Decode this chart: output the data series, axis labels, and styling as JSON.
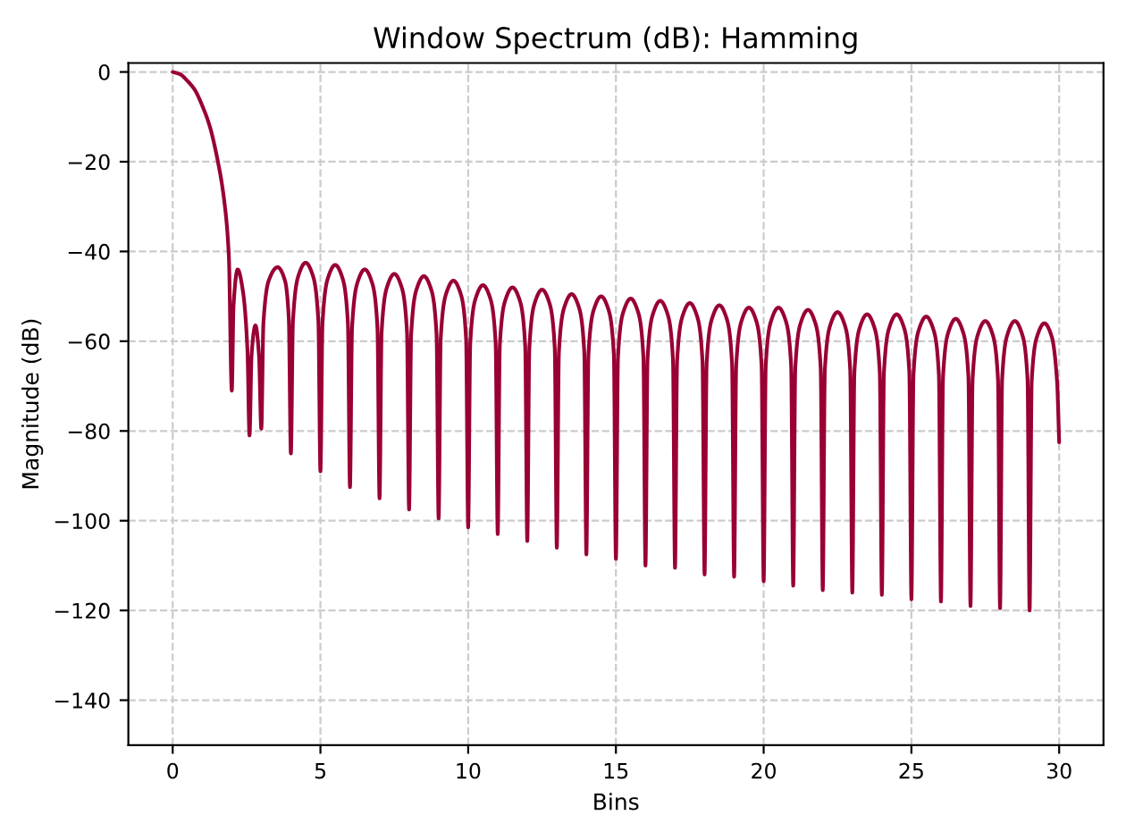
{
  "chart_data": {
    "type": "line",
    "title": "Window Spectrum (dB): Hamming",
    "xlabel": "Bins",
    "ylabel": "Magnitude (dB)",
    "x": [
      0,
      0.25,
      0.5,
      0.75,
      1,
      1.25,
      1.5,
      1.75,
      1.9,
      2,
      2.06,
      2.2,
      2.38,
      2.53,
      2.6,
      2.67,
      2.8,
      2.92,
      3,
      3.07,
      3.25,
      3.55,
      3.8,
      3.93,
      4,
      4.07,
      4.25,
      4.5,
      4.75,
      4.93,
      5,
      5.07,
      5.25,
      5.5,
      5.75,
      5.93,
      6,
      6.07,
      6.25,
      6.5,
      6.75,
      6.93,
      7,
      7.07,
      7.25,
      7.5,
      7.75,
      7.93,
      8,
      8.07,
      8.25,
      8.5,
      8.75,
      8.93,
      9,
      9.07,
      9.25,
      9.5,
      9.75,
      9.93,
      10,
      10.07,
      10.25,
      10.5,
      10.75,
      10.93,
      11,
      11.07,
      11.25,
      11.5,
      11.75,
      11.93,
      12,
      12.07,
      12.25,
      12.5,
      12.75,
      12.93,
      13,
      13.07,
      13.25,
      13.5,
      13.75,
      13.93,
      14,
      14.07,
      14.25,
      14.5,
      14.75,
      14.93,
      15,
      15.07,
      15.25,
      15.5,
      15.75,
      15.93,
      16,
      16.07,
      16.25,
      16.5,
      16.75,
      16.93,
      17,
      17.07,
      17.25,
      17.5,
      17.75,
      17.93,
      18,
      18.07,
      18.25,
      18.5,
      18.75,
      18.93,
      19,
      19.07,
      19.25,
      19.5,
      19.75,
      19.93,
      20,
      20.07,
      20.25,
      20.5,
      20.75,
      20.93,
      21,
      21.07,
      21.25,
      21.5,
      21.75,
      21.93,
      22,
      22.07,
      22.25,
      22.5,
      22.75,
      22.93,
      23,
      23.07,
      23.25,
      23.5,
      23.75,
      23.93,
      24,
      24.07,
      24.25,
      24.5,
      24.75,
      24.93,
      25,
      25.07,
      25.25,
      25.5,
      25.75,
      25.93,
      26,
      26.07,
      26.25,
      26.5,
      26.75,
      26.93,
      27,
      27.07,
      27.25,
      27.5,
      27.75,
      27.93,
      28,
      28.07,
      28.25,
      28.5,
      28.75,
      28.93,
      29,
      29.07,
      29.25,
      29.5,
      29.75,
      29.93,
      30
    ],
    "series": [
      {
        "color": "#990033",
        "values": [
          0,
          -0.5,
          -2,
          -4,
          -7.5,
          -12,
          -19,
          -29,
          -41,
          -71,
          -52,
          -44,
          -49,
          -62,
          -81,
          -63,
          -56.5,
          -63,
          -79.5,
          -56,
          -46.5,
          -43.5,
          -46.5,
          -55,
          -85,
          -55.5,
          -45.5,
          -42.5,
          -45.5,
          -55.5,
          -89,
          -56,
          -46,
          -43,
          -46,
          -56,
          -92.5,
          -57,
          -47,
          -44,
          -47,
          -57,
          -95,
          -58,
          -48,
          -45,
          -48,
          -58,
          -97.5,
          -58.5,
          -48.5,
          -45.5,
          -48.5,
          -58.5,
          -99.5,
          -59.5,
          -49.5,
          -46.5,
          -49.5,
          -59.5,
          -101.5,
          -60.5,
          -50.5,
          -47.5,
          -50.5,
          -60.5,
          -103,
          -61,
          -51,
          -48,
          -51,
          -61,
          -104.5,
          -61.5,
          -51.5,
          -48.5,
          -51.5,
          -61.5,
          -106,
          -62.5,
          -52.5,
          -49.5,
          -52.5,
          -62.5,
          -107.5,
          -63,
          -53,
          -50,
          -53,
          -63,
          -108.5,
          -63.5,
          -53.5,
          -50.5,
          -53.5,
          -63.5,
          -110,
          -64,
          -54,
          -51,
          -54,
          -64,
          -110.5,
          -64.5,
          -54.5,
          -51.5,
          -54.5,
          -64.5,
          -112,
          -65,
          -55,
          -52,
          -55,
          -65,
          -112.5,
          -65.5,
          -55.5,
          -52.5,
          -55.5,
          -65.5,
          -113.5,
          -65.5,
          -55.5,
          -52.5,
          -55.5,
          -65.5,
          -114.5,
          -66,
          -56,
          -53,
          -56,
          -66,
          -115.5,
          -66.5,
          -56.5,
          -53.5,
          -56.5,
          -66.5,
          -116,
          -67,
          -57,
          -54,
          -57,
          -67,
          -116.5,
          -67,
          -57,
          -54,
          -57,
          -67,
          -117.5,
          -67.5,
          -57.5,
          -54.5,
          -57.5,
          -67.5,
          -118,
          -68,
          -58,
          -55,
          -58,
          -68,
          -119,
          -68.5,
          -58.5,
          -55.5,
          -58.5,
          -68.5,
          -119.5,
          -68.5,
          -58.5,
          -55.5,
          -58.5,
          -68.5,
          -120,
          -69,
          -59,
          -56,
          -59,
          -69,
          -82.5
        ]
      }
    ],
    "xlim": [
      -1.5,
      31.5
    ],
    "ylim": [
      -150,
      2
    ],
    "xticks": [
      0,
      5,
      10,
      15,
      20,
      25,
      30
    ],
    "yticks": [
      0,
      -20,
      -40,
      -60,
      -80,
      -100,
      -120,
      -140
    ],
    "grid": true
  }
}
